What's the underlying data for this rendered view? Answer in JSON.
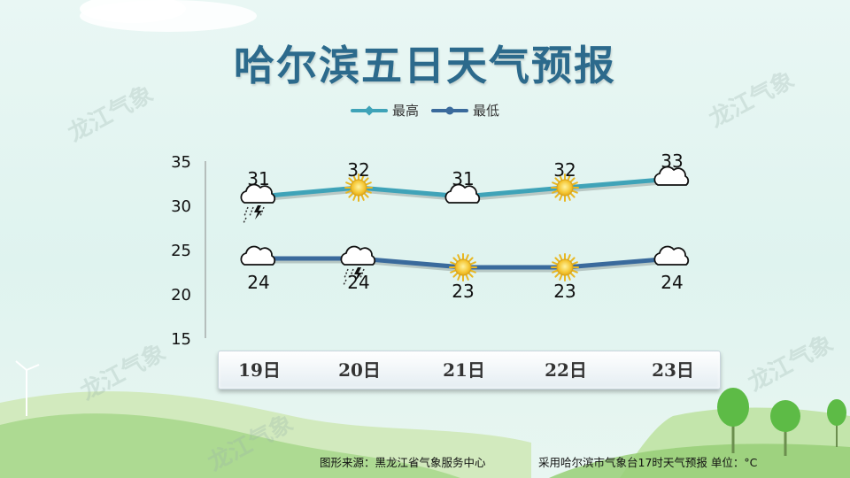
{
  "title": "哈尔滨五日天气预报",
  "watermark": "龙江气象",
  "legend": [
    {
      "label": "最高",
      "color": "#3fa3b8"
    },
    {
      "label": "最低",
      "color": "#3a6a9c"
    }
  ],
  "footer": {
    "source": "图形来源：黑龙江省气象服务中心",
    "note": "采用哈尔滨市气象台17时天气预报 单位：°C"
  },
  "chart_data": {
    "type": "line",
    "categories": [
      "19日",
      "20日",
      "21日",
      "22日",
      "23日"
    ],
    "series": [
      {
        "name": "最高",
        "values": [
          31,
          32,
          31,
          32,
          33
        ],
        "color": "#3fa3b8",
        "icons": [
          "thunderstorm-icon",
          "sun-icon",
          "cloud-icon",
          "sun-icon",
          "cloud-icon"
        ]
      },
      {
        "name": "最低",
        "values": [
          24,
          24,
          23,
          23,
          24
        ],
        "color": "#3a6a9c",
        "icons": [
          "cloud-icon",
          "thunderstorm-icon",
          "sun-icon",
          "sun-icon",
          "cloud-icon"
        ]
      }
    ],
    "yticks": [
      15,
      20,
      25,
      30,
      35
    ],
    "ylim": [
      15,
      35
    ],
    "grid": false,
    "legend_position": "top-center"
  }
}
